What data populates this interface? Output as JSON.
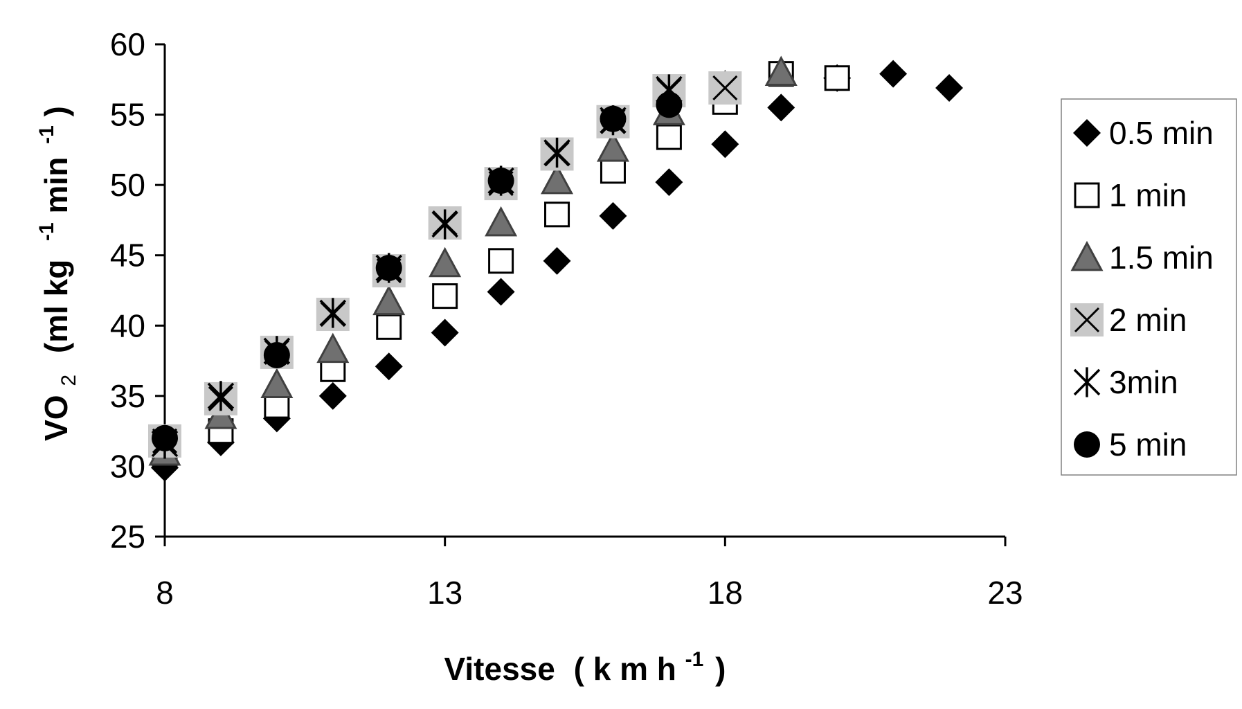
{
  "chart_data": {
    "type": "scatter",
    "title": "",
    "xlabel": {
      "main": "Vitesse",
      "unit_open": "( k m h",
      "unit_exp": "-1",
      "unit_close": ")"
    },
    "ylabel": {
      "main": "VO",
      "sub": "2",
      "unit_open": "(ml kg",
      "exp1": "-1",
      "unit_mid": "min",
      "exp2": "-1",
      "unit_close": ")"
    },
    "xlim": [
      8,
      23
    ],
    "ylim": [
      25,
      60
    ],
    "xticks": [
      "8",
      "13",
      "18",
      "23"
    ],
    "yticks": [
      "25",
      "30",
      "35",
      "40",
      "45",
      "50",
      "55",
      "60"
    ],
    "grid": false,
    "legend_position": "right",
    "series": [
      {
        "name": "0.5 min",
        "marker": "diamond",
        "x": [
          8,
          9,
          10,
          11,
          12,
          13,
          14,
          15,
          16,
          17,
          18,
          19,
          20,
          21,
          22
        ],
        "y": [
          29.9,
          31.7,
          33.4,
          35.0,
          37.1,
          39.5,
          42.4,
          44.6,
          47.8,
          50.2,
          52.9,
          55.5,
          57.6,
          57.9,
          56.9
        ]
      },
      {
        "name": "1 min",
        "marker": "square",
        "x": [
          8,
          9,
          10,
          11,
          12,
          13,
          14,
          15,
          16,
          17,
          18,
          19,
          20
        ],
        "y": [
          30.9,
          32.5,
          34.3,
          36.9,
          39.9,
          42.1,
          44.6,
          47.9,
          51.0,
          53.4,
          55.9,
          57.9,
          57.6
        ]
      },
      {
        "name": "1.5 min",
        "marker": "triangle",
        "x": [
          8,
          9,
          10,
          11,
          12,
          13,
          14,
          15,
          16,
          17,
          18,
          19
        ],
        "y": [
          31.0,
          33.6,
          35.8,
          38.3,
          41.7,
          44.4,
          47.3,
          50.3,
          52.6,
          55.2,
          57.0,
          58.0
        ]
      },
      {
        "name": "2 min",
        "marker": "x-box",
        "x": [
          8,
          9,
          10,
          11,
          12,
          13,
          14,
          15,
          16,
          17,
          18
        ],
        "y": [
          31.8,
          34.8,
          38.1,
          40.8,
          43.9,
          47.3,
          50.1,
          52.2,
          54.5,
          56.7,
          56.9
        ]
      },
      {
        "name": "3min",
        "marker": "asterisk",
        "x": [
          8,
          9,
          10,
          11,
          12,
          13,
          14,
          15,
          16,
          17
        ],
        "y": [
          31.6,
          35.0,
          38.2,
          40.9,
          44.1,
          47.2,
          50.3,
          52.3,
          54.6,
          56.8
        ]
      },
      {
        "name": "5 min",
        "marker": "circle",
        "x": [
          8,
          10,
          12,
          14,
          16,
          17
        ],
        "y": [
          32.0,
          37.9,
          44.1,
          50.3,
          54.7,
          55.7
        ]
      }
    ]
  }
}
